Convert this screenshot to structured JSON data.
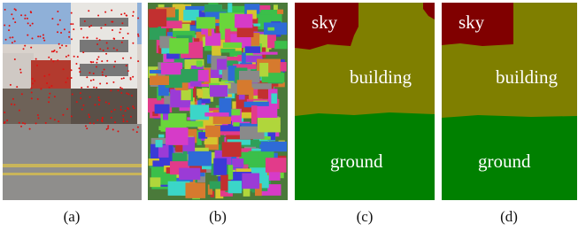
{
  "panels": [
    {
      "caption": "(a)"
    },
    {
      "caption": "(b)"
    },
    {
      "caption": "(c)",
      "labels": [
        "sky",
        "building",
        "ground"
      ]
    },
    {
      "caption": "(d)",
      "labels": [
        "sky",
        "building",
        "ground"
      ]
    }
  ]
}
